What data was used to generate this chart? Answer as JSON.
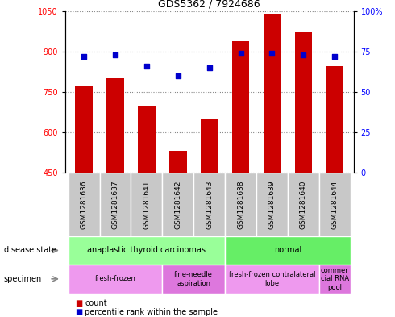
{
  "title": "GDS5362 / 7924686",
  "samples": [
    "GSM1281636",
    "GSM1281637",
    "GSM1281641",
    "GSM1281642",
    "GSM1281643",
    "GSM1281638",
    "GSM1281639",
    "GSM1281640",
    "GSM1281644"
  ],
  "counts": [
    775,
    800,
    700,
    530,
    650,
    940,
    1040,
    970,
    845
  ],
  "percentile_ranks": [
    72,
    73,
    66,
    60,
    65,
    74,
    74,
    73,
    72
  ],
  "ylim_left": [
    450,
    1050
  ],
  "ylim_right": [
    0,
    100
  ],
  "yticks_left": [
    450,
    600,
    750,
    900,
    1050
  ],
  "yticks_right": [
    0,
    25,
    50,
    75,
    100
  ],
  "bar_color": "#cc0000",
  "dot_color": "#0000cc",
  "disease_state": [
    {
      "label": "anaplastic thyroid carcinomas",
      "start": 0,
      "end": 5,
      "color": "#99ff99"
    },
    {
      "label": "normal",
      "start": 5,
      "end": 9,
      "color": "#66ee66"
    }
  ],
  "specimen": [
    {
      "label": "fresh-frozen",
      "start": 0,
      "end": 3,
      "color": "#ee99ee"
    },
    {
      "label": "fine-needle\naspiration",
      "start": 3,
      "end": 5,
      "color": "#dd77dd"
    },
    {
      "label": "fresh-frozen contralateral\nlobe",
      "start": 5,
      "end": 8,
      "color": "#ee99ee"
    },
    {
      "label": "commer\ncial RNA\npool",
      "start": 8,
      "end": 9,
      "color": "#dd77dd"
    }
  ],
  "grid_color": "#888888",
  "sample_bg": "#c8c8c8",
  "plot_bg": "#ffffff"
}
